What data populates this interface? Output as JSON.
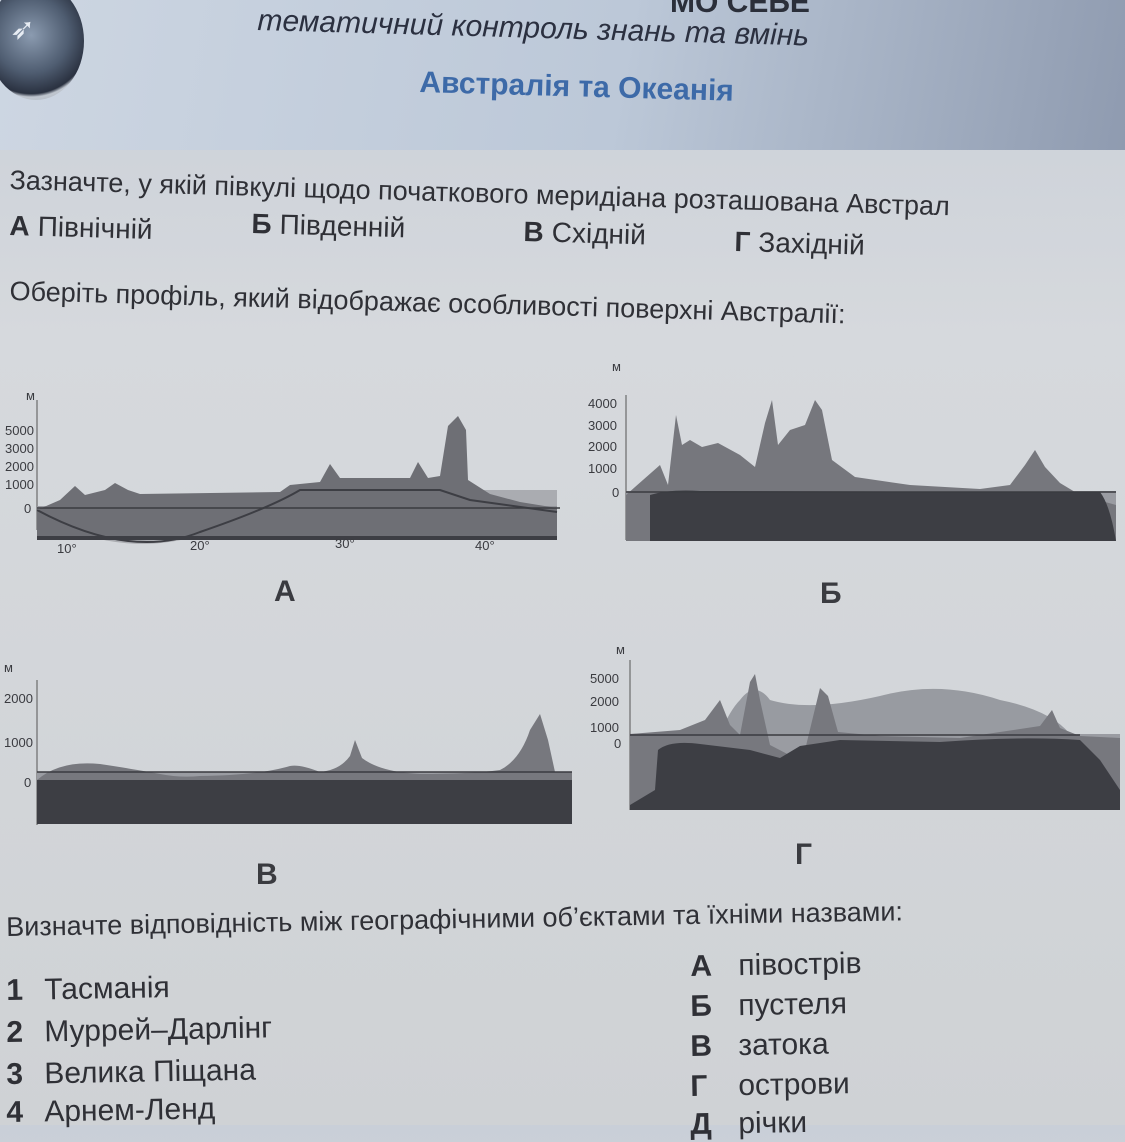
{
  "header": {
    "top_cut_text": "МО СЕБЕ",
    "subtitle": "тематичний контроль знань та вмінь",
    "title": "Австралія та Океанія"
  },
  "question1": {
    "text": "Зазначте, у якій півкулі щодо початкового меридіана розташована Австрал",
    "options": [
      {
        "letter": "А",
        "label": "Північній"
      },
      {
        "letter": "Б",
        "label": "Південній"
      },
      {
        "letter": "В",
        "label": "Східній"
      },
      {
        "letter": "Г",
        "label": "Західній"
      }
    ]
  },
  "question2": {
    "text": "Оберіть профіль, який відображає особливості поверхні Австралії:",
    "profiles": [
      {
        "label": "А",
        "unit": "м",
        "y_ticks": [
          "5000",
          "3000",
          "2000",
          "1000",
          "0"
        ],
        "x_ticks": [
          "10°",
          "20°",
          "30°",
          "40°"
        ]
      },
      {
        "label": "Б",
        "unit": "м",
        "y_ticks": [
          "4000",
          "3000",
          "2000",
          "1000",
          "0"
        ]
      },
      {
        "label": "В",
        "unit": "м",
        "y_ticks": [
          "2000",
          "1000",
          "0"
        ]
      },
      {
        "label": "Г",
        "unit": "м",
        "y_ticks": [
          "5000",
          "2000",
          "1000",
          "0"
        ]
      }
    ]
  },
  "question3": {
    "text": "Визначте відповідність між географічними об’єктами та їхніми назвами:",
    "items": [
      {
        "num": "1",
        "label": "Тасманія"
      },
      {
        "num": "2",
        "label": "Муррей–Дарлінг"
      },
      {
        "num": "3",
        "label": "Велика Піщана"
      },
      {
        "num": "4",
        "label": "Арнем-Ленд"
      }
    ],
    "answers": [
      {
        "letter": "А",
        "label": "півострів"
      },
      {
        "letter": "Б",
        "label": "пустеля"
      },
      {
        "letter": "В",
        "label": "затока"
      },
      {
        "letter": "Г",
        "label": "острови"
      },
      {
        "letter": "Д",
        "label": "річки"
      }
    ]
  },
  "colors": {
    "title_blue": "#3d6aa8",
    "text": "#2f3036",
    "ground_dark": "#3d3e44",
    "relief_gray": "#77787e",
    "sea_gray": "#9a9ca2"
  }
}
